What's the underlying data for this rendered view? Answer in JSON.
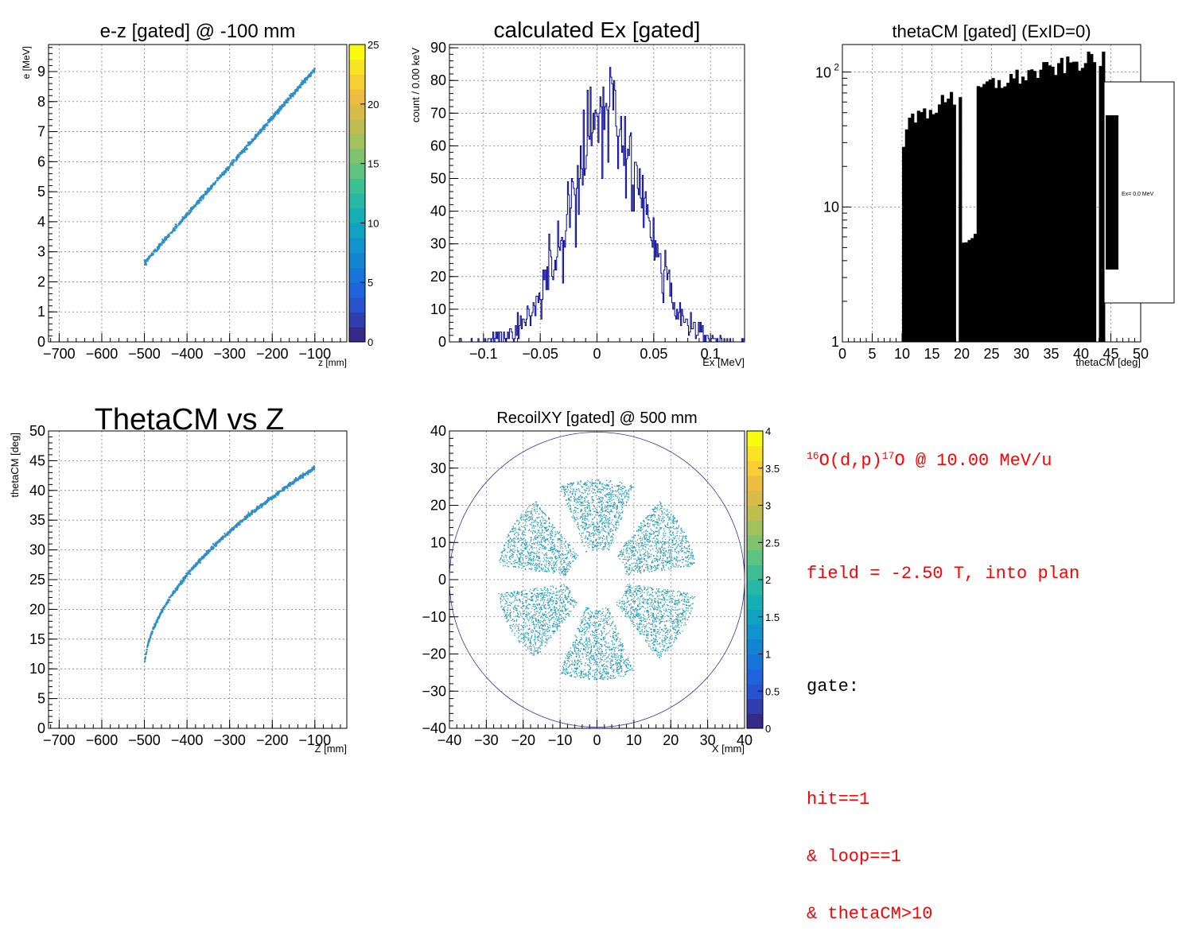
{
  "colors": {
    "axis": "#000000",
    "grid": "#7f7f7f",
    "hist_line": "#000099",
    "bar_fill": "#000000",
    "scatter": "#2e8fc4",
    "text_red": "#ff0000",
    "circle": "#3030a0",
    "palette": [
      "#352a87",
      "#2d4ac7",
      "#1c68e0",
      "#1280d4",
      "#1099c8",
      "#14aeb7",
      "#2ebd9c",
      "#60c37e",
      "#98c361",
      "#c8bc4d",
      "#ecb941",
      "#fbd52f",
      "#f9fb0e"
    ]
  },
  "chart_data": [
    {
      "id": "ez",
      "type": "scatter",
      "title": "e-z [gated] @  -100 mm",
      "xlabel": "z [mm]",
      "ylabel": "e [MeV]",
      "xlim": [
        -725,
        -25
      ],
      "ylim": [
        0,
        9.9
      ],
      "xticks": [
        -700,
        -600,
        -500,
        -400,
        -300,
        -200,
        -100
      ],
      "yticks": [
        0,
        1,
        2,
        3,
        4,
        5,
        6,
        7,
        8,
        9
      ],
      "grid": true,
      "curve": {
        "x_start": -500,
        "x_end": -100,
        "y_start": 2.62,
        "y_end": 9.08,
        "curvature": 0.0
      },
      "colorbar": {
        "min": 0,
        "max": 25,
        "ticks": [
          0,
          5,
          10,
          15,
          20,
          25
        ]
      }
    },
    {
      "id": "ex",
      "type": "line",
      "title": "calculated Ex [gated]",
      "xlabel": "Ex [MeV]",
      "ylabel": "count / 0.00 keV",
      "xlim": [
        -0.13,
        0.13
      ],
      "ylim": [
        0,
        91
      ],
      "xticks": [
        -0.1,
        -0.05,
        0,
        0.05,
        0.1
      ],
      "ytick_labels": [
        "0",
        "10",
        "20",
        "30",
        "40",
        "50",
        "60",
        "70",
        "80",
        "90"
      ],
      "xtick_labels": [
        "−0.1",
        "−0.05",
        "0",
        "0.05",
        "0.1"
      ],
      "grid": true,
      "gauss": {
        "mean": 0.008,
        "sigma": 0.033,
        "amplitude": 68
      }
    },
    {
      "id": "theta",
      "type": "bar",
      "title": "thetaCM [gated] (ExID=0)",
      "xlabel": "thetaCM [deg]",
      "ylabel": "count",
      "xlim": [
        0,
        50
      ],
      "ylim": [
        1,
        160
      ],
      "yscale": "log",
      "xticks": [
        0,
        5,
        10,
        15,
        20,
        25,
        30,
        35,
        40,
        45,
        50
      ],
      "ytick_labels": [
        "1",
        "10",
        "10"
      ],
      "ytick_exponent": "2",
      "grid": true,
      "range": [
        10,
        44
      ],
      "gaps": [
        [
          18.8,
          19.6
        ],
        [
          42.7,
          43.2
        ]
      ],
      "dips": [
        [
          19.8,
          22.5,
          5.8
        ],
        [
          24.8,
          25.2,
          23
        ]
      ],
      "start_value": 33,
      "end_value": 135,
      "legend": {
        "label": "Ex=  0.0 MeV",
        "position": "right"
      }
    },
    {
      "id": "thz",
      "type": "scatter",
      "title": "ThetaCM vs Z",
      "xlabel": "Z [mm]",
      "ylabel": "thetaCM [deg]",
      "xlim": [
        -725,
        -25
      ],
      "ylim": [
        0,
        50
      ],
      "xticks": [
        -700,
        -600,
        -500,
        -400,
        -300,
        -200,
        -100
      ],
      "yticks": [
        0,
        5,
        10,
        15,
        20,
        25,
        30,
        35,
        40,
        45,
        50
      ],
      "grid": true,
      "curve": {
        "x_start": -500,
        "x_end": -100,
        "y_start": 10,
        "y_end": 43.8,
        "power": 0.55
      }
    },
    {
      "id": "xy",
      "type": "scatter",
      "title": "RecoilXY [gated] @  500 mm",
      "xlabel": "X [mm]",
      "ylabel": "Y [mm]",
      "xlim": [
        -40,
        40
      ],
      "ylim": [
        -40,
        40
      ],
      "xticks": [
        -40,
        -30,
        -20,
        -10,
        0,
        10,
        20,
        30,
        40
      ],
      "yticks": [
        -40,
        -30,
        -20,
        -10,
        0,
        10,
        20,
        30,
        40
      ],
      "grid": true,
      "circle_radius": 40,
      "sectors": {
        "count": 6,
        "r_inner": 8,
        "r_outer": 27,
        "half_width_deg": 22,
        "first_center_deg": 90
      },
      "colorbar": {
        "min": 0,
        "max": 4,
        "ticks": [
          0,
          0.5,
          1,
          1.5,
          2,
          2.5,
          3,
          3.5,
          4
        ],
        "tick_labels": [
          "0",
          "0.5",
          "1",
          "1.5",
          "2",
          "2.5",
          "3",
          "3.5",
          "4"
        ]
      }
    }
  ],
  "info": {
    "reaction_mass1": "16",
    "reaction_mid": "O(d,p)",
    "reaction_mass2": "17",
    "reaction_end": "O @ 10.00 MeV/u",
    "field": "field = -2.50 T, into plan",
    "gate_label": "gate:",
    "gate_1": "hit==1",
    "gate_2": "& loop==1",
    "gate_3": "& thetaCM>10"
  }
}
